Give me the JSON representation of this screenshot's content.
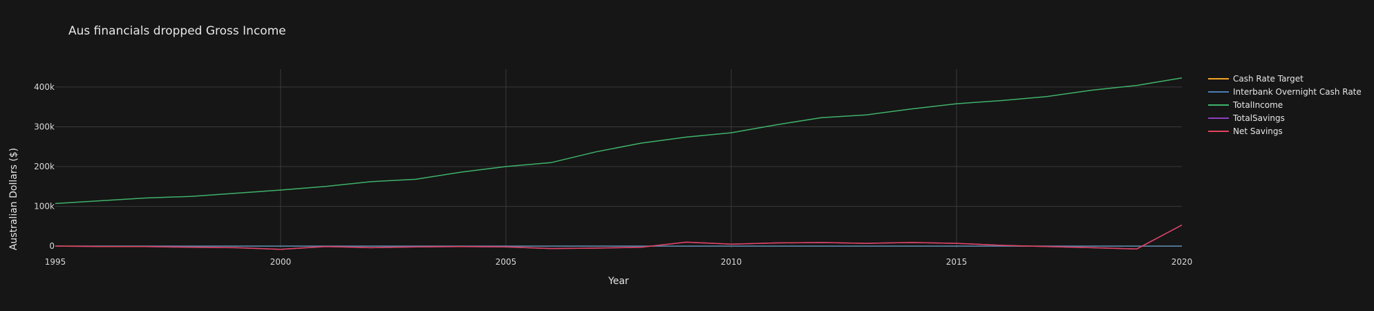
{
  "chart_data": {
    "type": "line",
    "title": "Aus financials dropped Gross Income",
    "xlabel": "Year",
    "ylabel": "Australian Dollars ($)",
    "xlim": [
      1995,
      2020
    ],
    "ylim": [
      -5000,
      445000
    ],
    "x_ticks": [
      1995,
      2000,
      2005,
      2010,
      2015,
      2020
    ],
    "x_tick_labels": [
      "1995",
      "2000",
      "2005",
      "2010",
      "2015",
      "2020"
    ],
    "y_ticks": [
      0,
      100000,
      200000,
      300000,
      400000
    ],
    "y_tick_labels": [
      "0",
      "100k",
      "200k",
      "300k",
      "400k"
    ],
    "grid": true,
    "legend_position": "top-right",
    "x": [
      1995,
      1996,
      1997,
      1998,
      1999,
      2000,
      2001,
      2002,
      2003,
      2004,
      2005,
      2006,
      2007,
      2008,
      2009,
      2010,
      2011,
      2012,
      2013,
      2014,
      2015,
      2016,
      2017,
      2018,
      2019,
      2020
    ],
    "series": [
      {
        "name": "Cash Rate Target",
        "color": "#f5a623",
        "values": [
          7.5,
          7.5,
          6.5,
          5.0,
          4.8,
          5.5,
          5.0,
          4.5,
          4.75,
          5.25,
          5.5,
          5.75,
          6.25,
          7.0,
          3.25,
          4.0,
          4.75,
          4.0,
          2.75,
          2.5,
          2.0,
          1.75,
          1.5,
          1.5,
          1.25,
          0.25
        ]
      },
      {
        "name": "Interbank Overnight Cash Rate",
        "color": "#4a7fb5",
        "values": [
          7.5,
          7.5,
          6.5,
          5.0,
          4.8,
          5.5,
          5.0,
          4.5,
          4.75,
          5.25,
          5.5,
          5.75,
          6.25,
          7.0,
          3.25,
          4.0,
          4.75,
          4.0,
          2.75,
          2.5,
          2.0,
          1.75,
          1.5,
          1.5,
          1.25,
          0.25
        ]
      },
      {
        "name": "TotalIncome",
        "color": "#3fb36b",
        "values": [
          107000,
          114000,
          121000,
          125000,
          133000,
          141000,
          150000,
          162000,
          168000,
          186000,
          200000,
          210000,
          237000,
          259000,
          274000,
          285000,
          305000,
          323000,
          330000,
          345000,
          358000,
          366000,
          376000,
          392000,
          404000,
          423000
        ]
      },
      {
        "name": "TotalSavings",
        "color": "#8e3fbf",
        "values": [
          0,
          -1000,
          -1000,
          -3000,
          -4000,
          -8000,
          -1000,
          -4000,
          -2000,
          -1000,
          -2000,
          -6000,
          -5000,
          -3000,
          10000,
          5000,
          8000,
          9000,
          7000,
          9000,
          7000,
          2000,
          -1000,
          -4000,
          -7000,
          53000
        ]
      },
      {
        "name": "Net Savings",
        "color": "#e2445e",
        "values": [
          0,
          -1000,
          -1000,
          -3000,
          -4000,
          -8000,
          -1000,
          -4000,
          -2000,
          -1000,
          -2000,
          -6000,
          -5000,
          -3000,
          10000,
          5000,
          8000,
          9000,
          7000,
          9000,
          7000,
          2000,
          -1000,
          -4000,
          -7000,
          53000
        ]
      }
    ]
  }
}
